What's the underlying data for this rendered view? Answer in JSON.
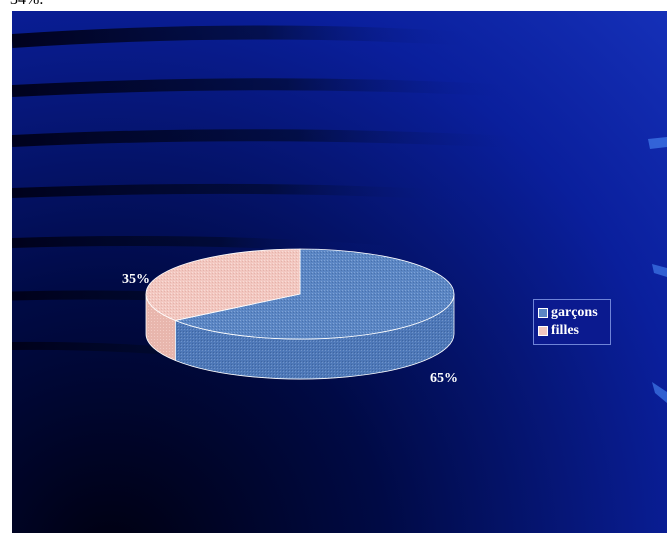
{
  "caption": "34%.",
  "chart_data": {
    "type": "pie",
    "style": "3d",
    "categories": [
      "garçons",
      "filles"
    ],
    "values": [
      65,
      35
    ],
    "labels": [
      "65%",
      "35%"
    ],
    "colors": {
      "garçons": "#5b86c4",
      "filles": "#f2c7c0"
    },
    "legend": "right",
    "title": "",
    "xlabel": "",
    "ylabel": ""
  }
}
